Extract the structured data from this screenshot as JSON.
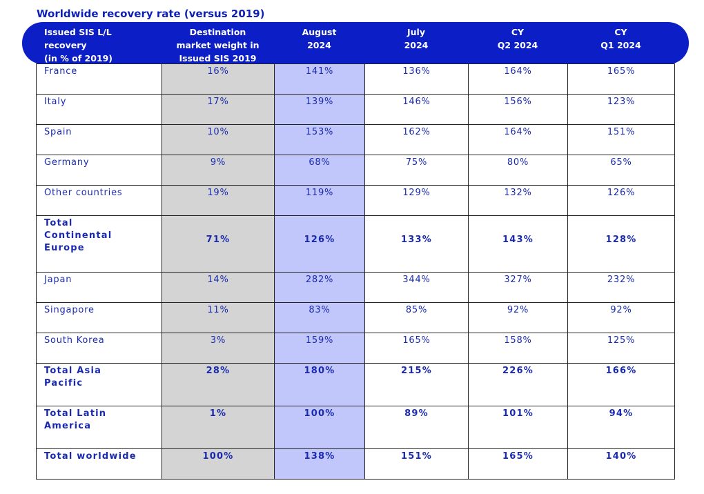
{
  "title": "Worldwide recovery rate (versus 2019)",
  "header": {
    "col0": [
      "Issued SIS L/L",
      "recovery",
      "(in % of 2019)"
    ],
    "col1": [
      "Destination",
      "market weight in",
      "Issued SIS 2019"
    ],
    "col2": [
      "August",
      "2024"
    ],
    "col3": [
      "July",
      "2024"
    ],
    "col4": [
      "CY",
      "Q2 2024"
    ],
    "col5": [
      "CY",
      "Q1 2024"
    ]
  },
  "rows": [
    {
      "label": "France",
      "weight": "16%",
      "aug": "141%",
      "jul": "136%",
      "q2": "164%",
      "q1": "165%"
    },
    {
      "label": "Italy",
      "weight": "17%",
      "aug": "139%",
      "jul": "146%",
      "q2": "156%",
      "q1": "123%"
    },
    {
      "label": "Spain",
      "weight": "10%",
      "aug": "153%",
      "jul": "162%",
      "q2": "164%",
      "q1": "151%"
    },
    {
      "label": "Germany",
      "weight": "9%",
      "aug": "68%",
      "jul": "75%",
      "q2": "80%",
      "q1": "65%"
    },
    {
      "label": "Other countries",
      "weight": "19%",
      "aug": "119%",
      "jul": "129%",
      "q2": "132%",
      "q1": "126%"
    },
    {
      "label": "Total Continental Europe",
      "weight": "71%",
      "aug": "126%",
      "jul": "133%",
      "q2": "143%",
      "q1": "128%"
    },
    {
      "label": "Japan",
      "weight": "14%",
      "aug": "282%",
      "jul": "344%",
      "q2": "327%",
      "q1": "232%"
    },
    {
      "label": "Singapore",
      "weight": "11%",
      "aug": "83%",
      "jul": "85%",
      "q2": "92%",
      "q1": "92%"
    },
    {
      "label": "South Korea",
      "weight": "3%",
      "aug": "159%",
      "jul": "165%",
      "q2": "158%",
      "q1": "125%"
    },
    {
      "label": "Total Asia Pacific",
      "weight": "28%",
      "aug": "180%",
      "jul": "215%",
      "q2": "226%",
      "q1": "166%"
    },
    {
      "label": "Total Latin America",
      "weight": "1%",
      "aug": "100%",
      "jul": "89%",
      "q2": "101%",
      "q1": "94%"
    },
    {
      "label": "Total worldwide",
      "weight": "100%",
      "aug": "138%",
      "jul": "151%",
      "q2": "165%",
      "q1": "140%"
    }
  ],
  "colors": {
    "header_bg": "#0c1fc6",
    "weight_column_bg": "#d4d4d4",
    "august_column_bg": "#c1c6fb",
    "text": "#1a2ab0"
  }
}
